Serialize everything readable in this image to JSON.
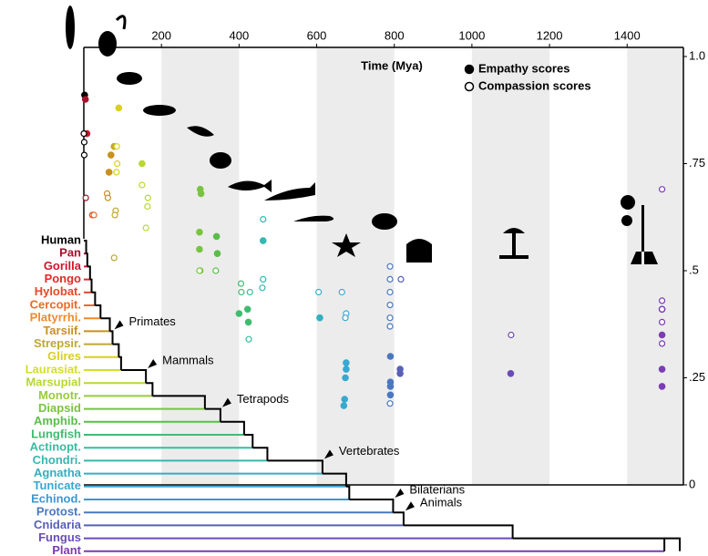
{
  "chart_data": {
    "type": "scatter",
    "x_label": "Time (Mya)",
    "xlim": [
      0,
      1545
    ],
    "xticks": [
      200,
      400,
      600,
      800,
      1000,
      1200,
      1400
    ],
    "ylim": [
      0,
      1
    ],
    "yticks": [
      0,
      {
        "value": 0.25,
        "label": ".25"
      },
      {
        "value": 0.5,
        "label": ".5"
      },
      {
        "value": 0.75,
        "label": ".75"
      },
      {
        "value": 1,
        "label": "1.0"
      }
    ],
    "legend": "upper right",
    "series": [
      {
        "name": "Empathy scores",
        "marker": "filled",
        "x": [
          2,
          4,
          8,
          65,
          78,
          70,
          90,
          150,
          300,
          302,
          298,
          342,
          344,
          298,
          462,
          400,
          422,
          424,
          608,
          676,
          676,
          674,
          672,
          670,
          790,
          790,
          790,
          790,
          815,
          815,
          1100,
          1490,
          1490,
          1490,
          1490
        ],
        "values": [
          0.91,
          0.9,
          0.82,
          0.73,
          0.79,
          0.77,
          0.88,
          0.75,
          0.69,
          0.68,
          0.59,
          0.58,
          0.54,
          0.55,
          0.57,
          0.4,
          0.41,
          0.38,
          0.39,
          0.285,
          0.27,
          0.25,
          0.2,
          0.185,
          0.3,
          0.24,
          0.23,
          0.21,
          0.27,
          0.26,
          0.26,
          0.41,
          0.35,
          0.27,
          0.23
        ]
      },
      {
        "name": "Compassion scores",
        "marker": "open",
        "x": [
          0,
          1,
          1,
          5,
          22,
          26,
          60,
          62,
          85,
          86,
          84,
          82,
          80,
          78,
          150,
          165,
          164,
          160,
          300,
          298,
          340,
          405,
          406,
          428,
          425,
          462,
          462,
          460,
          605,
          665,
          676,
          674,
          789,
          789,
          789,
          789,
          789,
          789,
          817,
          789,
          1101,
          1490,
          1490,
          1490,
          1490,
          1490
        ],
        "values": [
          0.82,
          0.8,
          0.77,
          0.67,
          0.63,
          0.63,
          0.68,
          0.67,
          0.79,
          0.75,
          0.73,
          0.64,
          0.63,
          0.53,
          0.7,
          0.67,
          0.65,
          0.6,
          0.5,
          0.5,
          0.5,
          0.47,
          0.45,
          0.45,
          0.34,
          0.62,
          0.48,
          0.46,
          0.45,
          0.45,
          0.4,
          0.39,
          0.51,
          0.48,
          0.45,
          0.42,
          0.39,
          0.37,
          0.48,
          0.19,
          0.35,
          0.69,
          0.43,
          0.41,
          0.38,
          0.33
        ]
      }
    ],
    "clades": [
      {
        "name": "Human",
        "color": "#000000"
      },
      {
        "name": "Pan",
        "color": "#a8102a",
        "divergence": 6
      },
      {
        "name": "Gorilla",
        "color": "#d0142c",
        "divergence": 9
      },
      {
        "name": "Pongo",
        "color": "#e02a2a",
        "divergence": 16
      },
      {
        "name": "Hylobat.",
        "color": "#e8462a",
        "divergence": 20
      },
      {
        "name": "Cercopit.",
        "color": "#ec6a2a",
        "divergence": 29
      },
      {
        "name": "Platyrrhi.",
        "color": "#f08a28",
        "divergence": 43
      },
      {
        "name": "Tarsiif.",
        "color": "#c8901e",
        "divergence": 67
      },
      {
        "name": "Strepsir.",
        "color": "#c0a830",
        "divergence": 74,
        "annotation": "Primates"
      },
      {
        "name": "Glires",
        "color": "#d8d020",
        "divergence": 90
      },
      {
        "name": "Laurasiat.",
        "color": "#d4de28",
        "divergence": 96
      },
      {
        "name": "Marsupial",
        "color": "#b8d830",
        "divergence": 160,
        "annotation": "Mammals"
      },
      {
        "name": "Monotr.",
        "color": "#98cc38",
        "divergence": 177
      },
      {
        "name": "Diapsid",
        "color": "#78c440",
        "divergence": 312
      },
      {
        "name": "Amphib.",
        "color": "#58be48",
        "divergence": 352,
        "annotation": "Tetrapods"
      },
      {
        "name": "Lungfish",
        "color": "#40bc70",
        "divergence": 413
      },
      {
        "name": "Actinopt.",
        "color": "#38bca0",
        "divergence": 435
      },
      {
        "name": "Chondri.",
        "color": "#34b8b0",
        "divergence": 473
      },
      {
        "name": "Agnatha",
        "color": "#30b0c0",
        "divergence": 615,
        "annotation": "Vertebrates"
      },
      {
        "name": "Tunicate",
        "color": "#38a8d0",
        "divergence": 676
      },
      {
        "name": "Echinod.",
        "color": "#3c98d0",
        "divergence": 684
      },
      {
        "name": "Protost.",
        "color": "#4a78c0",
        "divergence": 797,
        "annotation": "Bilaterians"
      },
      {
        "name": "Cnidaria",
        "color": "#5860b8",
        "divergence": 824,
        "annotation": "Animals"
      },
      {
        "name": "Fungus",
        "color": "#6a4cb8",
        "divergence": 1105
      },
      {
        "name": "Plant",
        "color": "#7c3cb4",
        "divergence": 1496
      }
    ]
  }
}
